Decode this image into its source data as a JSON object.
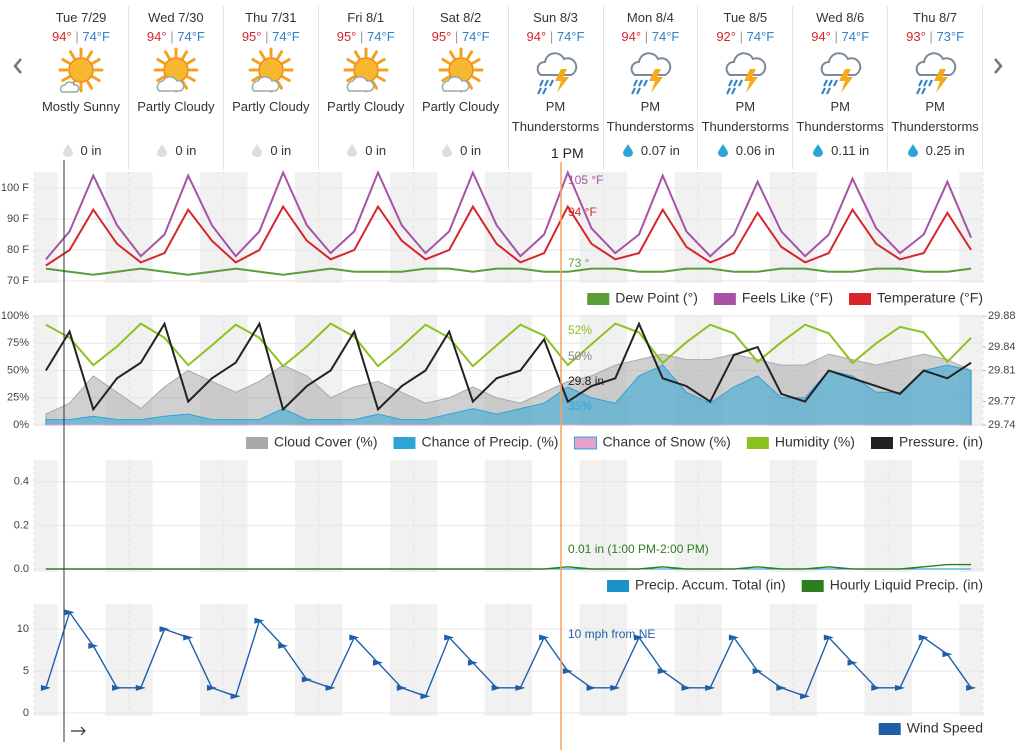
{
  "cursor_label": "1 PM",
  "days": [
    {
      "date": "Tue 7/29",
      "hi": "94°",
      "sep": "|",
      "lo": "74°F",
      "icon": "sunny",
      "condition": "Mostly Sunny",
      "precip": "0 in"
    },
    {
      "date": "Wed 7/30",
      "hi": "94°",
      "sep": "|",
      "lo": "74°F",
      "icon": "partly",
      "condition": "Partly Cloudy",
      "precip": "0 in"
    },
    {
      "date": "Thu 7/31",
      "hi": "95°",
      "sep": "|",
      "lo": "74°F",
      "icon": "partly",
      "condition": "Partly Cloudy",
      "precip": "0 in"
    },
    {
      "date": "Fri 8/1",
      "hi": "95°",
      "sep": "|",
      "lo": "74°F",
      "icon": "partly",
      "condition": "Partly Cloudy",
      "precip": "0 in"
    },
    {
      "date": "Sat 8/2",
      "hi": "95°",
      "sep": "|",
      "lo": "74°F",
      "icon": "partly",
      "condition": "Partly Cloudy",
      "precip": "0 in"
    },
    {
      "date": "Sun 8/3",
      "hi": "94°",
      "sep": "|",
      "lo": "74°F",
      "icon": "storm",
      "condition": "PM Thunderstorms"
    },
    {
      "date": "Mon 8/4",
      "hi": "94°",
      "sep": "|",
      "lo": "74°F",
      "icon": "storm",
      "condition": "PM Thunderstorms",
      "precip": "0.07 in"
    },
    {
      "date": "Tue 8/5",
      "hi": "92°",
      "sep": "|",
      "lo": "74°F",
      "icon": "storm",
      "condition": "PM Thunderstorms",
      "precip": "0.06 in"
    },
    {
      "date": "Wed 8/6",
      "hi": "94°",
      "sep": "|",
      "lo": "74°F",
      "icon": "storm",
      "condition": "PM Thunderstorms",
      "precip": "0.11 in"
    },
    {
      "date": "Thu 8/7",
      "hi": "93°",
      "sep": "|",
      "lo": "73°F",
      "icon": "storm",
      "condition": "PM Thunderstorms",
      "precip": "0.25 in"
    }
  ],
  "chart_data": [
    {
      "type": "line",
      "ylim": [
        70,
        105
      ],
      "yticks": [
        {
          "value": 70,
          "label": "70 F"
        },
        {
          "value": 80,
          "label": "80 F"
        },
        {
          "value": 90,
          "label": "90 F"
        },
        {
          "value": 100,
          "label": "100 F"
        }
      ],
      "series": [
        {
          "name": "Dew Point (°)",
          "color": "#5a9e3a",
          "kind": "line",
          "values": [
            74,
            73,
            72,
            73,
            74,
            73,
            72,
            73,
            74,
            73,
            72,
            73,
            74,
            73,
            73,
            73,
            74,
            74,
            73,
            74,
            74,
            73,
            73,
            74,
            74,
            73,
            73,
            74,
            74,
            73,
            73,
            74,
            74,
            73,
            73,
            74,
            74,
            73,
            73,
            74
          ]
        },
        {
          "name": "Feels Like (°F)",
          "color": "#a653a6",
          "kind": "line",
          "values": [
            77,
            86,
            104,
            88,
            78,
            85,
            104,
            88,
            78,
            86,
            105,
            88,
            79,
            86,
            105,
            88,
            79,
            86,
            105,
            88,
            78,
            85,
            105,
            87,
            79,
            85,
            104,
            86,
            78,
            85,
            102,
            86,
            78,
            85,
            103,
            87,
            79,
            85,
            102,
            84
          ]
        },
        {
          "name": "Temperature (°F)",
          "color": "#d6262b",
          "kind": "line",
          "values": [
            75,
            80,
            93,
            82,
            76,
            79,
            93,
            83,
            76,
            80,
            94,
            83,
            77,
            80,
            94,
            83,
            77,
            80,
            94,
            82,
            76,
            79,
            94,
            82,
            77,
            79,
            93,
            81,
            76,
            79,
            92,
            81,
            76,
            79,
            93,
            82,
            77,
            79,
            92,
            80
          ]
        }
      ],
      "annotations": [
        {
          "text": "105 °F",
          "color": "#a653a6"
        },
        {
          "text": "94 °F",
          "color": "#d6262b"
        },
        {
          "text": "73 °",
          "color": "#5a9e3a"
        }
      ]
    },
    {
      "type": "line",
      "ylim": [
        0,
        100
      ],
      "y2lim": [
        29.74,
        29.88
      ],
      "yticks": [
        {
          "value": 0,
          "label": "0%"
        },
        {
          "value": 25,
          "label": "25%"
        },
        {
          "value": 50,
          "label": "50%"
        },
        {
          "value": 75,
          "label": "75%"
        },
        {
          "value": 100,
          "label": "100%"
        }
      ],
      "y2ticks": [
        29.74,
        29.77,
        29.81,
        29.84,
        29.88
      ],
      "series": [
        {
          "name": "Cloud Cover (%)",
          "color": "#a9a9a9",
          "kind": "area",
          "values": [
            10,
            20,
            45,
            30,
            15,
            35,
            50,
            40,
            30,
            40,
            55,
            45,
            25,
            35,
            40,
            30,
            20,
            25,
            35,
            25,
            20,
            30,
            40,
            45,
            55,
            60,
            65,
            60,
            60,
            65,
            60,
            55,
            55,
            65,
            60,
            55,
            60,
            65,
            60,
            50
          ]
        },
        {
          "name": "Chance of Precip. (%)",
          "color": "#2ea4d6",
          "kind": "area",
          "values": [
            5,
            5,
            8,
            5,
            5,
            8,
            10,
            5,
            5,
            5,
            15,
            5,
            5,
            5,
            10,
            5,
            5,
            10,
            15,
            10,
            15,
            20,
            35,
            25,
            20,
            45,
            55,
            30,
            20,
            35,
            45,
            25,
            25,
            50,
            45,
            30,
            30,
            50,
            55,
            50
          ]
        },
        {
          "name": "Chance of Snow (%)",
          "color": "#e7a3cf",
          "kind": "area",
          "values": [
            0,
            0,
            0,
            0,
            0,
            0,
            0,
            0,
            0,
            0,
            0,
            0,
            0,
            0,
            0,
            0,
            0,
            0,
            0,
            0,
            0,
            0,
            0,
            0,
            0,
            0,
            0,
            0,
            0,
            0,
            0,
            0,
            0,
            0,
            0,
            0,
            0,
            0,
            0,
            0
          ]
        },
        {
          "name": "Humidity (%)",
          "color": "#8cc21f",
          "kind": "line",
          "values": [
            92,
            80,
            55,
            72,
            93,
            80,
            55,
            73,
            92,
            80,
            54,
            72,
            93,
            81,
            54,
            72,
            92,
            80,
            54,
            73,
            92,
            82,
            55,
            74,
            93,
            85,
            57,
            76,
            92,
            84,
            58,
            76,
            92,
            84,
            57,
            75,
            90,
            85,
            58,
            80
          ]
        },
        {
          "name": "Pressure. (in)",
          "color": "#222222",
          "kind": "line",
          "axis": "y2",
          "values": [
            29.81,
            29.86,
            29.76,
            29.8,
            29.82,
            29.87,
            29.77,
            29.8,
            29.82,
            29.87,
            29.76,
            29.79,
            29.81,
            29.86,
            29.76,
            29.79,
            29.81,
            29.86,
            29.77,
            29.8,
            29.81,
            29.85,
            29.77,
            29.79,
            29.8,
            29.87,
            29.8,
            29.79,
            29.77,
            29.83,
            29.84,
            29.78,
            29.77,
            29.81,
            29.8,
            29.79,
            29.78,
            29.81,
            29.8,
            29.82
          ]
        }
      ],
      "annotations": [
        {
          "text": "52%",
          "color": "#8cc21f"
        },
        {
          "text": "50%",
          "color": "#888888"
        },
        {
          "text": "29.8 in",
          "color": "#222222"
        },
        {
          "text": "35%",
          "color": "#2ea4d6"
        }
      ]
    },
    {
      "type": "line",
      "ylim": [
        0,
        0.5
      ],
      "yticks": [
        {
          "value": 0,
          "label": "0.0"
        },
        0.2,
        0.4
      ],
      "series": [
        {
          "name": "Precip. Accum. Total (in)",
          "color": "#1b93c9",
          "kind": "area",
          "values": [
            0,
            0,
            0,
            0,
            0,
            0,
            0,
            0,
            0,
            0,
            0,
            0,
            0,
            0,
            0,
            0,
            0,
            0,
            0,
            0,
            0,
            0,
            0,
            0,
            0,
            0,
            0,
            0,
            0,
            0,
            0,
            0,
            0,
            0,
            0,
            0,
            0,
            0,
            0,
            0
          ]
        },
        {
          "name": "Hourly Liquid Precip. (in)",
          "color": "#2e7d1e",
          "kind": "line",
          "values": [
            0,
            0,
            0,
            0,
            0,
            0,
            0,
            0,
            0,
            0,
            0,
            0,
            0,
            0,
            0,
            0,
            0,
            0,
            0,
            0,
            0,
            0,
            0.01,
            0,
            0,
            0,
            0.01,
            0,
            0,
            0,
            0.01,
            0,
            0,
            0.01,
            0,
            0,
            0,
            0.01,
            0.02,
            0.02
          ]
        }
      ],
      "annotations": [
        {
          "text": "0.01 in (1:00 PM-2:00 PM)",
          "color": "#2e7d1e"
        }
      ]
    },
    {
      "type": "line",
      "ylim": [
        0,
        13
      ],
      "yticks": [
        0,
        5,
        10
      ],
      "series": [
        {
          "name": "Wind Speed",
          "color": "#1f5fa8",
          "kind": "line",
          "values": [
            3,
            12,
            8,
            3,
            3,
            10,
            9,
            3,
            2,
            11,
            8,
            4,
            3,
            9,
            6,
            3,
            2,
            9,
            6,
            3,
            3,
            9,
            5,
            3,
            3,
            9,
            5,
            3,
            3,
            9,
            5,
            3,
            2,
            9,
            6,
            3,
            3,
            9,
            7,
            3
          ]
        }
      ],
      "annotations": [
        {
          "text": "10 mph from NE",
          "color": "#1f5fa8"
        }
      ]
    }
  ]
}
